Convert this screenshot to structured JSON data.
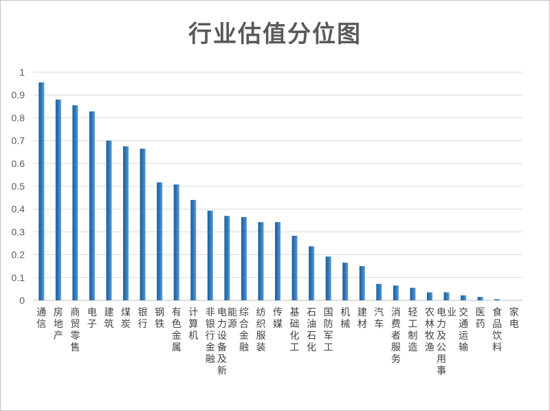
{
  "chart_data": {
    "type": "bar",
    "title": "行业估值分位图",
    "xlabel": "",
    "ylabel": "",
    "ylim": [
      0,
      1
    ],
    "yticks": [
      "0",
      "0.1",
      "0.2",
      "0.3",
      "0.4",
      "0.5",
      "0.6",
      "0.7",
      "0.8",
      "0.9",
      "1"
    ],
    "grid": true,
    "legend": "none",
    "bar_color": "#2e75b6",
    "categories": [
      "通信",
      "房地产",
      "商贸零售",
      "电子",
      "建筑",
      "煤炭",
      "银行",
      "钢铁",
      "有色金属",
      "计算机",
      "非银行金融",
      "电力设备及新能源",
      "综合金融",
      "纺织服装",
      "传媒",
      "基础化工",
      "石油石化",
      "国防军工",
      "机械",
      "建材",
      "汽车",
      "消费者服务",
      "轻工制造",
      "农林牧渔",
      "电力及公用事业",
      "交通运输",
      "医药",
      "食品饮料",
      "家电"
    ],
    "values": [
      0.955,
      0.88,
      0.855,
      0.828,
      0.7,
      0.675,
      0.665,
      0.517,
      0.508,
      0.44,
      0.393,
      0.37,
      0.365,
      0.343,
      0.343,
      0.283,
      0.237,
      0.192,
      0.165,
      0.15,
      0.072,
      0.065,
      0.055,
      0.035,
      0.035,
      0.022,
      0.015,
      0.005,
      0.0
    ]
  }
}
